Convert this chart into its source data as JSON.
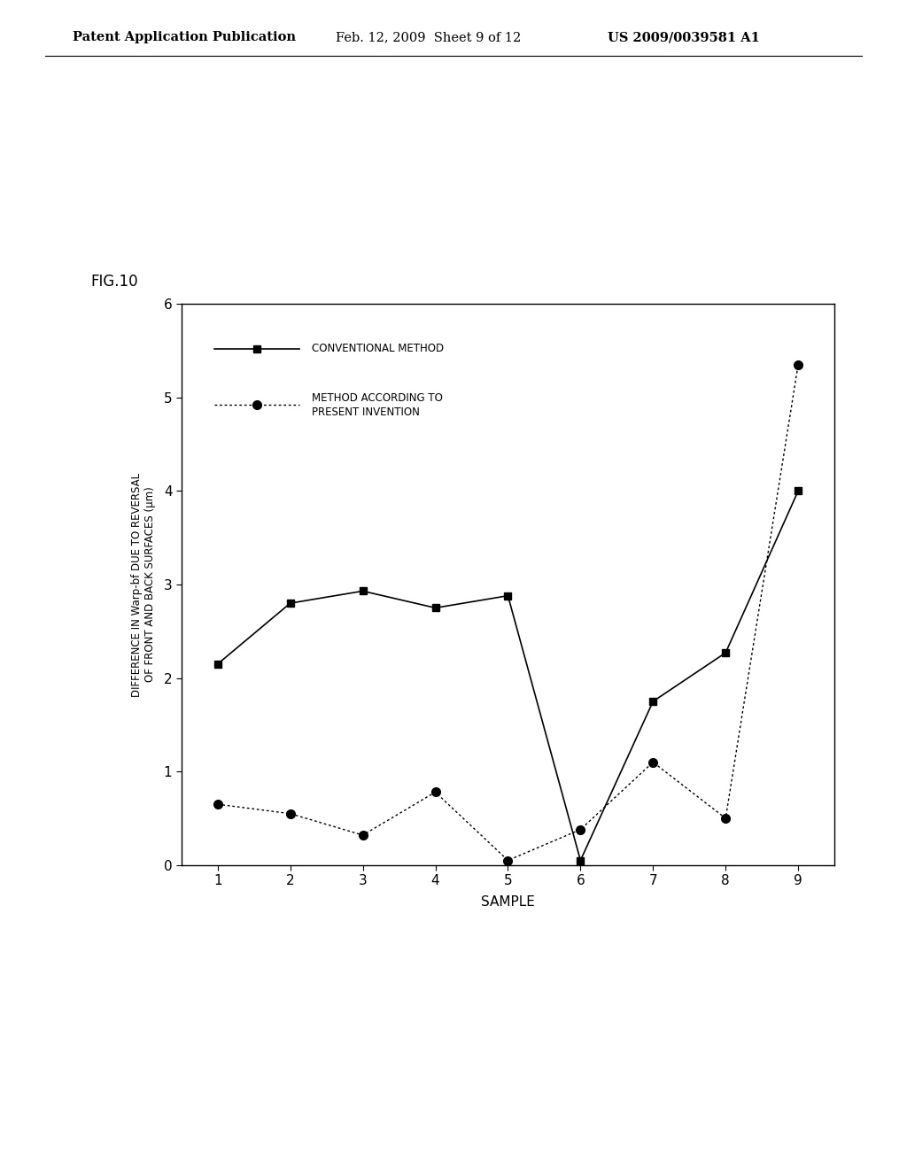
{
  "fig_label": "FIG.10",
  "header_left": "Patent Application Publication",
  "header_mid": "Feb. 12, 2009  Sheet 9 of 12",
  "header_right": "US 2009/0039581 A1",
  "x_values": [
    1,
    2,
    3,
    4,
    5,
    6,
    7,
    8,
    9
  ],
  "conventional_y": [
    2.15,
    2.8,
    2.93,
    2.75,
    2.88,
    0.05,
    1.75,
    2.27,
    4.0
  ],
  "invention_y": [
    0.65,
    0.55,
    0.32,
    0.78,
    0.05,
    0.38,
    1.1,
    0.5,
    5.35
  ],
  "xlabel": "SAMPLE",
  "ylabel": "DIFFERENCE IN Warp-bf DUE TO REVERSAL\nOF FRONT AND BACK SURFACES (μm)",
  "ylim": [
    0,
    6
  ],
  "yticks": [
    0,
    1,
    2,
    3,
    4,
    5,
    6
  ],
  "xticks": [
    1,
    2,
    3,
    4,
    5,
    6,
    7,
    8,
    9
  ],
  "legend_conventional": "CONVENTIONAL METHOD",
  "legend_invention": "METHOD ACCORDING TO\nPRESENT INVENTION",
  "background_color": "#ffffff",
  "line_color": "#000000"
}
